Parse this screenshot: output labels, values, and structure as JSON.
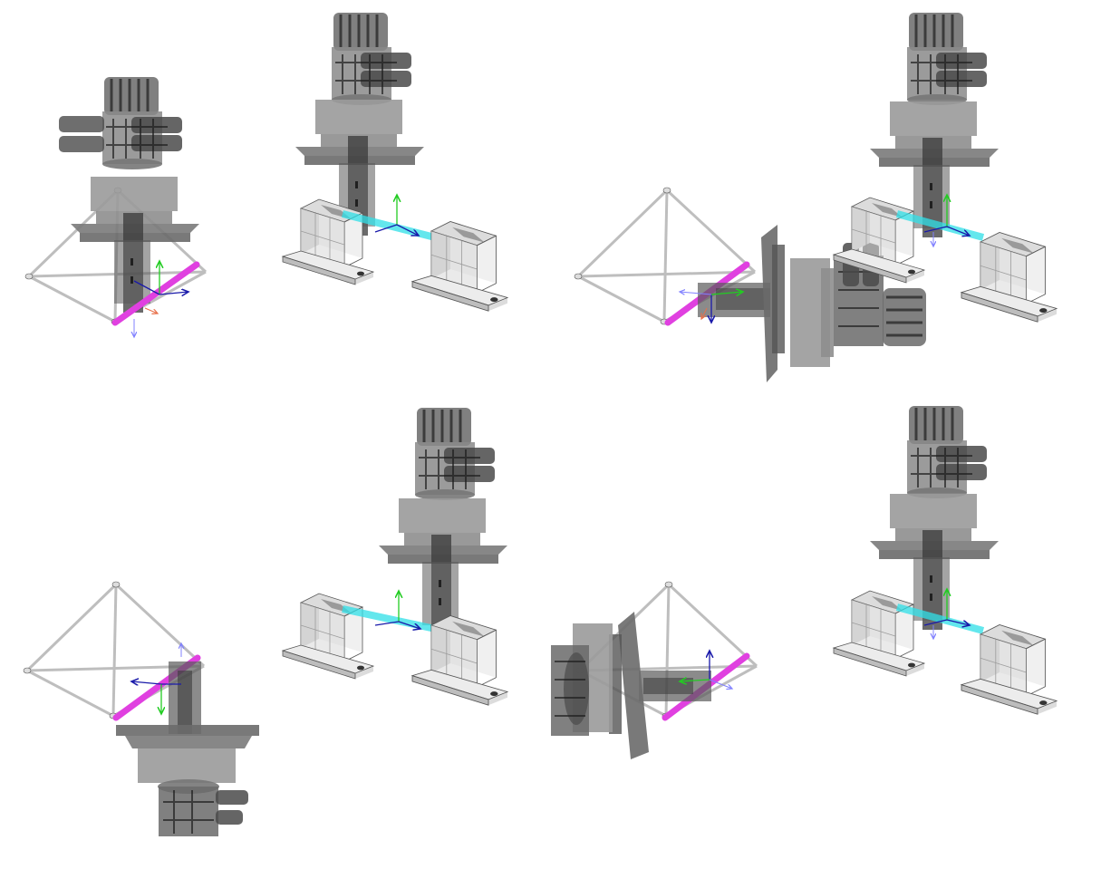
{
  "scene": {
    "description_visible_text": "",
    "background": "#ffffff",
    "colors": {
      "part_fill": "#7a7a7a",
      "part_dark": "#3a3a3a",
      "part_light": "#b8b8b8",
      "bracket_light": "#e8e8e8",
      "bracket_dark": "#9a9a9a",
      "frame_line": "#aaaaaa",
      "rod_magenta": "#e040e0",
      "rod_cyan": "#30e0e8",
      "axis_x": "#e8704a",
      "axis_y": "#22cc22",
      "axis_z": "#1a1aaa",
      "axis_z_light": "#8080ff"
    },
    "panels": [
      {
        "id": "panel-1",
        "variant": "tripod-magenta-rod"
      },
      {
        "id": "panel-2",
        "variant": "brackets-cyan-rod"
      },
      {
        "id": "panel-3",
        "variant": "tripod-sideways"
      },
      {
        "id": "panel-4",
        "variant": "brackets-cyan-rod"
      },
      {
        "id": "panel-5",
        "variant": "tripod-inverted"
      },
      {
        "id": "panel-6",
        "variant": "brackets-cyan-rod"
      },
      {
        "id": "panel-7",
        "variant": "tripod-sideways-left"
      },
      {
        "id": "panel-8",
        "variant": "brackets-cyan-rod"
      }
    ]
  }
}
